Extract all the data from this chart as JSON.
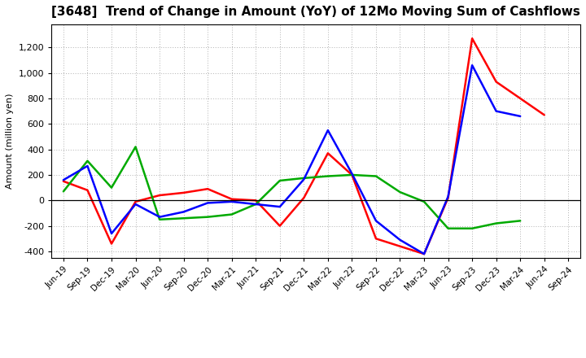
{
  "title": "[3648]  Trend of Change in Amount (YoY) of 12Mo Moving Sum of Cashflows",
  "ylabel": "Amount (million yen)",
  "x_labels": [
    "Jun-19",
    "Sep-19",
    "Dec-19",
    "Mar-20",
    "Jun-20",
    "Sep-20",
    "Dec-20",
    "Mar-21",
    "Jun-21",
    "Sep-21",
    "Dec-21",
    "Mar-22",
    "Jun-22",
    "Sep-22",
    "Dec-22",
    "Mar-23",
    "Jun-23",
    "Sep-23",
    "Dec-23",
    "Mar-24",
    "Jun-24",
    "Sep-24"
  ],
  "operating": [
    150,
    80,
    -340,
    -10,
    40,
    60,
    90,
    10,
    0,
    -200,
    20,
    370,
    200,
    -300,
    -360,
    -420,
    20,
    1270,
    930,
    800,
    670,
    null
  ],
  "investing": [
    70,
    310,
    100,
    420,
    -150,
    -140,
    -130,
    -110,
    -30,
    155,
    175,
    190,
    200,
    190,
    65,
    -10,
    -220,
    -220,
    -180,
    -160,
    null,
    null
  ],
  "free": [
    160,
    270,
    -260,
    -30,
    -130,
    -90,
    -20,
    -10,
    -30,
    -50,
    165,
    550,
    210,
    -160,
    -310,
    -420,
    30,
    1060,
    700,
    660,
    null,
    null
  ],
  "ylim": [
    -450,
    1380
  ],
  "yticks": [
    -400,
    -200,
    0,
    200,
    400,
    600,
    800,
    1000,
    1200
  ],
  "operating_color": "#ff0000",
  "investing_color": "#00aa00",
  "free_color": "#0000ff",
  "background_color": "#ffffff",
  "grid_color": "#b0b0b0"
}
